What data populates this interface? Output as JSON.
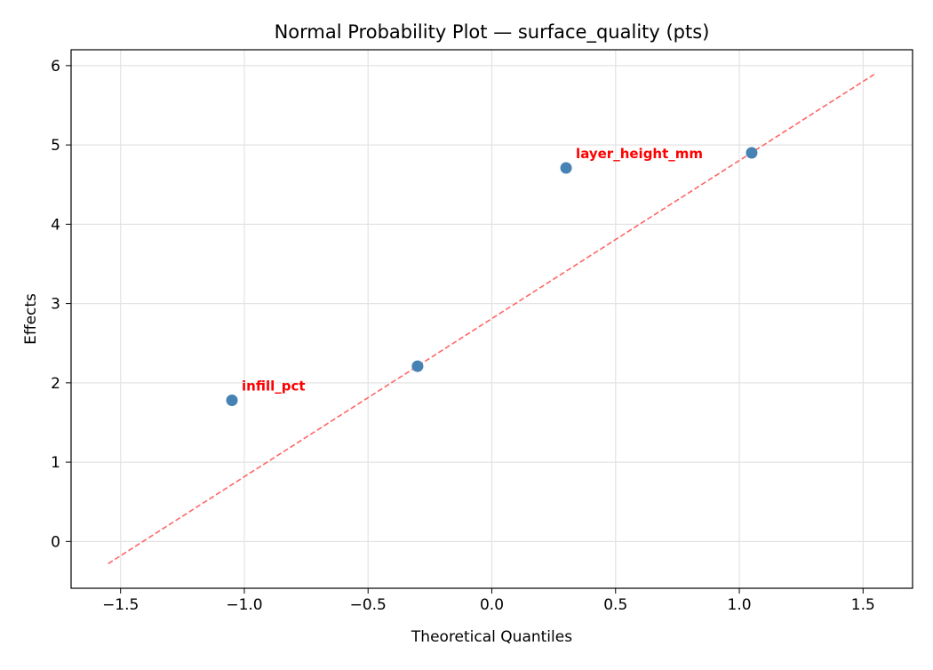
{
  "chart_data": {
    "type": "scatter",
    "title": "Normal Probability Plot — surface_quality (pts)",
    "xlabel": "Theoretical Quantiles",
    "ylabel": "Effects",
    "xlim": [
      -1.7,
      1.7
    ],
    "ylim": [
      -0.59,
      6.2
    ],
    "xticks": [
      -1.5,
      -1.0,
      -0.5,
      0.0,
      0.5,
      1.0,
      1.5
    ],
    "xtick_labels": [
      "−1.5",
      "−1.0",
      "−0.5",
      "0.0",
      "0.5",
      "1.0",
      "1.5"
    ],
    "yticks": [
      0,
      1,
      2,
      3,
      4,
      5,
      6
    ],
    "ytick_labels": [
      "0",
      "1",
      "2",
      "3",
      "4",
      "5",
      "6"
    ],
    "grid": true,
    "series": [
      {
        "name": "effects",
        "color": "#4682b4",
        "points": [
          {
            "x": -1.05,
            "y": 1.78,
            "label": "infill_pct"
          },
          {
            "x": -0.3,
            "y": 2.21,
            "label": ""
          },
          {
            "x": 0.3,
            "y": 4.71,
            "label": "layer_height_mm"
          },
          {
            "x": 1.05,
            "y": 4.9,
            "label": ""
          }
        ]
      }
    ],
    "reference_line": {
      "x": [
        -1.55,
        1.55
      ],
      "y": [
        -0.28,
        5.9
      ],
      "color": "#ff6666",
      "style": "dashed"
    },
    "annotation_color": "#ff0000"
  }
}
